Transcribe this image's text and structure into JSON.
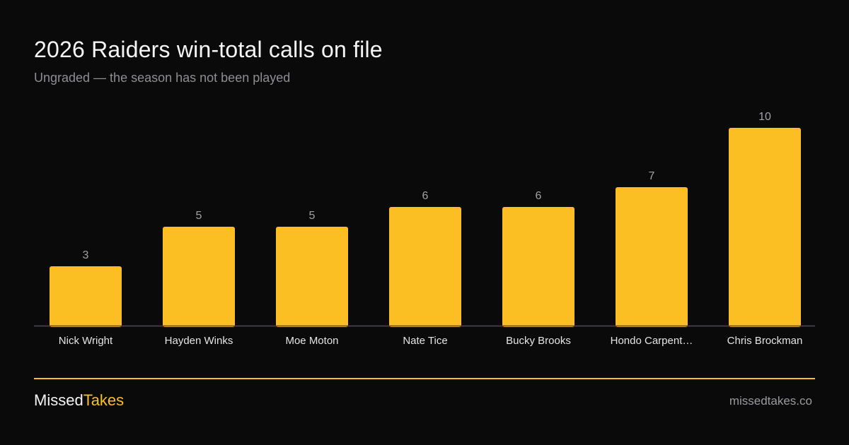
{
  "header": {
    "title": "2026 Raiders win-total calls on file",
    "subtitle": "Ungraded — the season has not been played"
  },
  "colors": {
    "background": "#0a0a0a",
    "bar": "#fbbf24",
    "accent": "#fbbf24",
    "axis": "#4a4a52",
    "value_label": "#a1a1a6",
    "category_label": "#e5e5e5"
  },
  "chart_data": {
    "type": "bar",
    "title": "2026 Raiders win-total calls on file",
    "subtitle": "Ungraded — the season has not been played",
    "xlabel": "",
    "ylabel": "",
    "categories": [
      "Nick Wright",
      "Hayden Winks",
      "Moe Moton",
      "Nate Tice",
      "Bucky Brooks",
      "Hondo Carpent…",
      "Chris Brockman"
    ],
    "values": [
      3,
      5,
      5,
      6,
      6,
      7,
      10
    ],
    "ylim": [
      0,
      10
    ],
    "grid": false,
    "legend": "none"
  },
  "footer": {
    "brand_part1": "Missed",
    "brand_part2": "Takes",
    "site": "missedtakes.co"
  }
}
